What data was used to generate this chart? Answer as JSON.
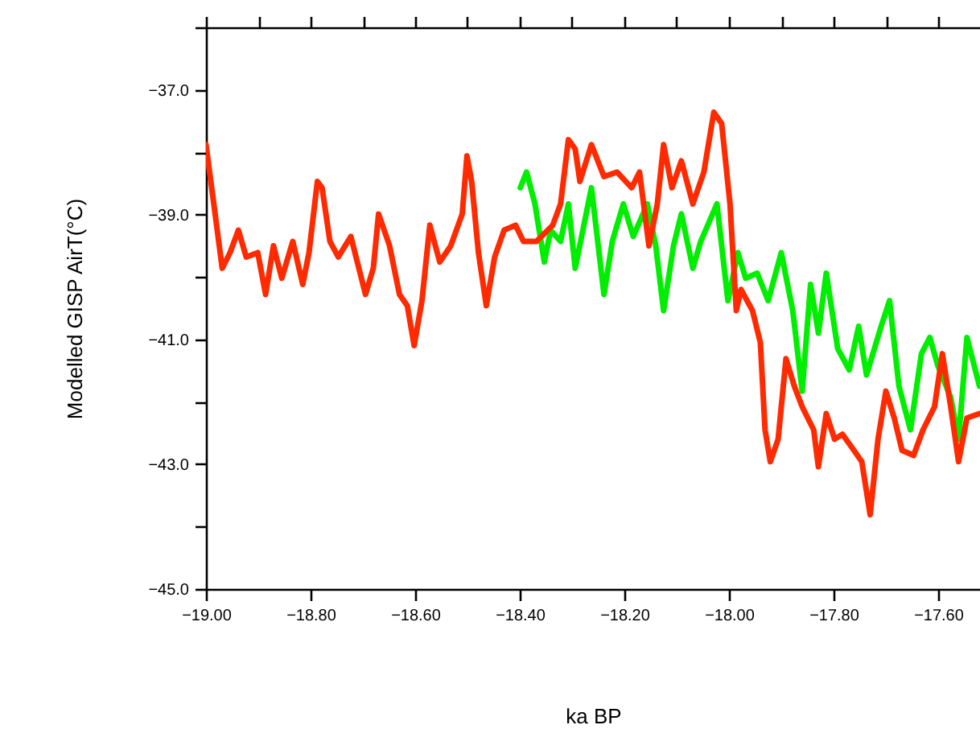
{
  "chart_data": {
    "type": "line",
    "xlabel": "ka BP",
    "ylabel": "Modelled GISP AirT(°C)",
    "xlim": [
      -19.0,
      -17.52
    ],
    "ylim": [
      -45.0,
      -36.0
    ],
    "xticks": [
      {
        "value": -19.0,
        "label": "−19.00"
      },
      {
        "value": -18.9,
        "label": null
      },
      {
        "value": -18.8,
        "label": "−18.80"
      },
      {
        "value": -18.7,
        "label": null
      },
      {
        "value": -18.6,
        "label": "−18.60"
      },
      {
        "value": -18.5,
        "label": null
      },
      {
        "value": -18.4,
        "label": "−18.40"
      },
      {
        "value": -18.3,
        "label": null
      },
      {
        "value": -18.2,
        "label": "−18.20"
      },
      {
        "value": -18.1,
        "label": null
      },
      {
        "value": -18.0,
        "label": "−18.00"
      },
      {
        "value": -17.9,
        "label": null
      },
      {
        "value": -17.8,
        "label": "−17.80"
      },
      {
        "value": -17.7,
        "label": null
      },
      {
        "value": -17.6,
        "label": "−17.60"
      }
    ],
    "yticks": [
      {
        "value": -45,
        "label": "−45.0"
      },
      {
        "value": -44,
        "label": null
      },
      {
        "value": -43,
        "label": "−43.0"
      },
      {
        "value": -42,
        "label": null
      },
      {
        "value": -41,
        "label": "−41.0"
      },
      {
        "value": -40,
        "label": null
      },
      {
        "value": -39,
        "label": "−39.0"
      },
      {
        "value": -38,
        "label": null
      },
      {
        "value": -37,
        "label": "−37.0"
      },
      {
        "value": -36,
        "label": null
      }
    ],
    "grid": false,
    "marker": "none",
    "line_style": "solid",
    "series": [
      {
        "color": "#00ee00",
        "x": [
          -18.399,
          -18.387,
          -18.371,
          -18.353,
          -18.341,
          -18.322,
          -18.307,
          -18.294,
          -18.263,
          -18.239,
          -18.223,
          -18.202,
          -18.183,
          -18.156,
          -18.14,
          -18.125,
          -18.106,
          -18.091,
          -18.069,
          -18.054,
          -18.023,
          -18.002,
          -17.983,
          -17.968,
          -17.946,
          -17.925,
          -17.9,
          -17.878,
          -17.86,
          -17.844,
          -17.829,
          -17.814,
          -17.792,
          -17.77,
          -17.752,
          -17.737,
          -17.709,
          -17.693,
          -17.675,
          -17.653,
          -17.632,
          -17.616,
          -17.601,
          -17.576,
          -17.561,
          -17.545,
          -17.521
        ],
        "values": [
          -38.57,
          -38.32,
          -38.83,
          -39.76,
          -39.25,
          -39.43,
          -38.83,
          -39.86,
          -38.57,
          -40.28,
          -39.43,
          -38.83,
          -39.35,
          -38.83,
          -39.5,
          -40.54,
          -39.5,
          -38.99,
          -39.86,
          -39.43,
          -38.83,
          -40.38,
          -39.61,
          -40.02,
          -39.94,
          -40.38,
          -39.61,
          -40.54,
          -41.83,
          -40.12,
          -40.9,
          -39.94,
          -41.15,
          -41.49,
          -40.79,
          -41.57,
          -40.79,
          -40.38,
          -41.75,
          -42.45,
          -41.23,
          -40.97,
          -41.41,
          -41.93,
          -42.6,
          -40.97,
          -41.75
        ]
      },
      {
        "color": "#ff2a00",
        "x": [
          -19.0,
          -18.985,
          -18.969,
          -18.954,
          -18.938,
          -18.923,
          -18.901,
          -18.886,
          -18.871,
          -18.855,
          -18.834,
          -18.815,
          -18.803,
          -18.787,
          -18.778,
          -18.763,
          -18.747,
          -18.723,
          -18.695,
          -18.68,
          -18.67,
          -18.649,
          -18.63,
          -18.615,
          -18.602,
          -18.587,
          -18.572,
          -18.553,
          -18.532,
          -18.51,
          -18.501,
          -18.492,
          -18.479,
          -18.464,
          -18.448,
          -18.43,
          -18.408,
          -18.393,
          -18.368,
          -18.337,
          -18.322,
          -18.307,
          -18.294,
          -18.285,
          -18.263,
          -18.239,
          -18.214,
          -18.186,
          -18.171,
          -18.153,
          -18.137,
          -18.125,
          -18.109,
          -18.091,
          -18.069,
          -18.048,
          -18.029,
          -18.014,
          -17.998,
          -17.986,
          -17.977,
          -17.955,
          -17.94,
          -17.931,
          -17.921,
          -17.906,
          -17.891,
          -17.875,
          -17.86,
          -17.838,
          -17.829,
          -17.814,
          -17.798,
          -17.783,
          -17.761,
          -17.746,
          -17.73,
          -17.715,
          -17.7,
          -17.684,
          -17.669,
          -17.647,
          -17.629,
          -17.607,
          -17.592,
          -17.576,
          -17.561,
          -17.545,
          -17.521
        ],
        "values": [
          -37.88,
          -38.83,
          -39.86,
          -39.61,
          -39.25,
          -39.68,
          -39.61,
          -40.28,
          -39.5,
          -40.02,
          -39.43,
          -40.12,
          -39.61,
          -38.47,
          -38.57,
          -39.43,
          -39.68,
          -39.35,
          -40.28,
          -39.86,
          -38.99,
          -39.5,
          -40.28,
          -40.46,
          -41.1,
          -40.38,
          -39.17,
          -39.76,
          -39.5,
          -38.99,
          -38.06,
          -38.47,
          -39.61,
          -40.46,
          -39.68,
          -39.25,
          -39.17,
          -39.43,
          -39.43,
          -39.17,
          -38.83,
          -37.8,
          -37.95,
          -38.47,
          -37.88,
          -38.39,
          -38.32,
          -38.57,
          -38.32,
          -39.5,
          -38.83,
          -37.88,
          -38.57,
          -38.14,
          -38.83,
          -38.32,
          -37.36,
          -37.54,
          -38.83,
          -40.54,
          -40.2,
          -40.54,
          -41.05,
          -42.45,
          -42.96,
          -42.6,
          -41.31,
          -41.75,
          -42.08,
          -42.45,
          -43.04,
          -42.19,
          -42.6,
          -42.52,
          -42.78,
          -42.96,
          -43.81,
          -42.6,
          -41.83,
          -42.26,
          -42.78,
          -42.86,
          -42.45,
          -42.08,
          -41.23,
          -42.08,
          -42.96,
          -42.26,
          -42.19
        ]
      }
    ]
  }
}
